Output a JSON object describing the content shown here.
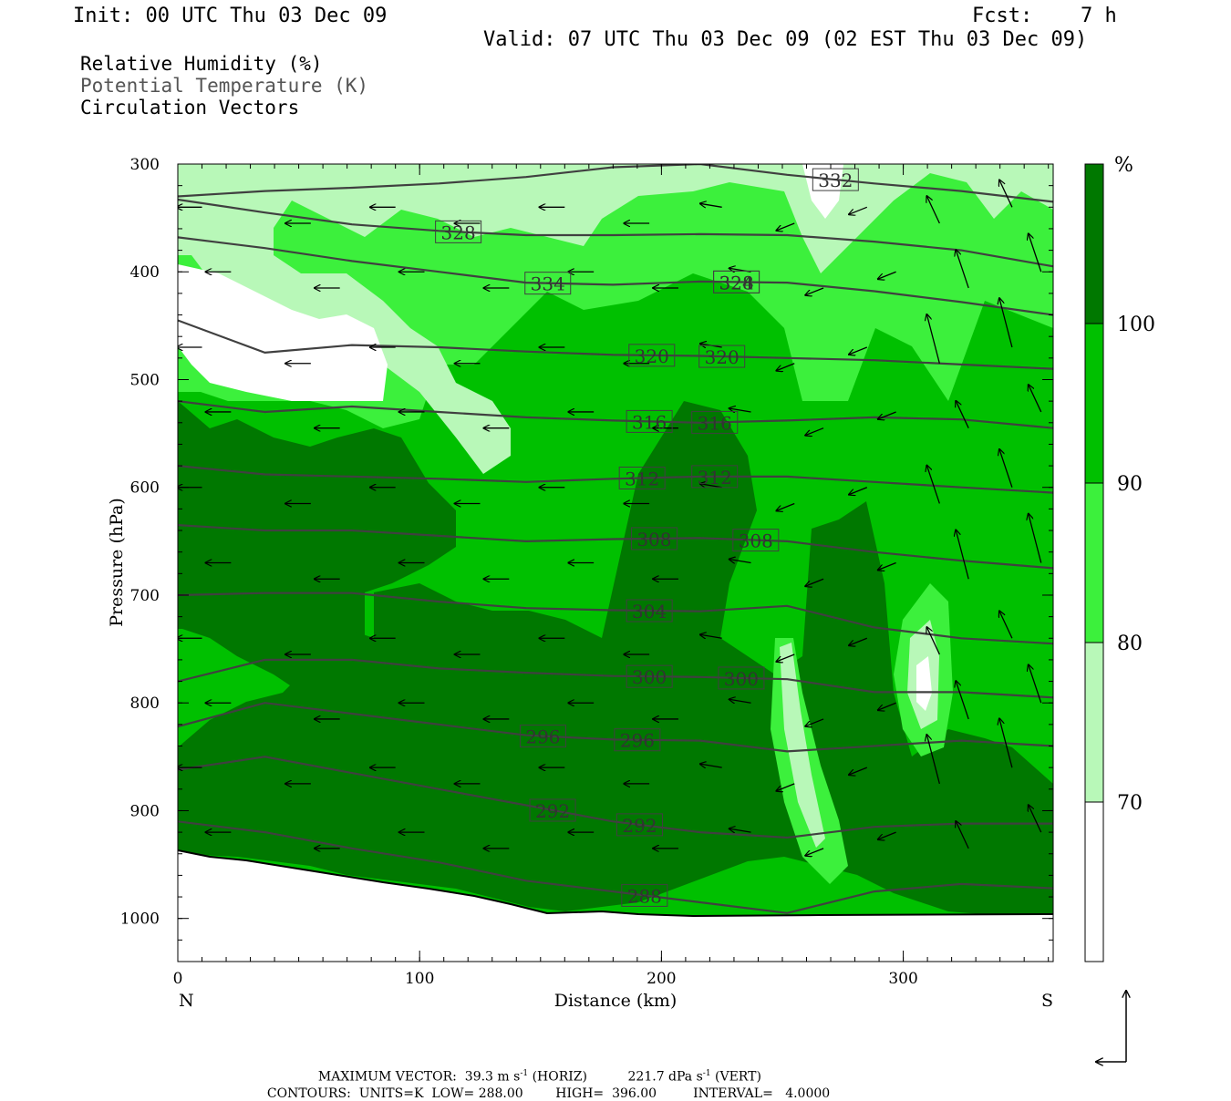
{
  "header": {
    "init": "Init: 00 UTC Thu 03 Dec 09",
    "fcst_label": "Fcst:",
    "fcst_value": "7 h",
    "valid": "Valid: 07 UTC Thu 03 Dec 09 (02 EST Thu 03 Dec 09)"
  },
  "legend": {
    "line1": "Relative Humidity (%)",
    "line2": "Potential Temperature (K)",
    "line3": "Circulation Vectors"
  },
  "colors": {
    "white": "#ffffff",
    "rh70": "#b8f8b8",
    "rh80": "#3cf03c",
    "rh90": "#00c000",
    "rh100": "#007800",
    "contour": "#404040",
    "legend_gray": "#555555"
  },
  "chart_data": {
    "type": "heatmap",
    "xlabel": "Distance (km)",
    "ylabel": "Pressure (hPa)",
    "xlim": [
      0,
      362
    ],
    "ylim": [
      1040,
      300
    ],
    "x_ticks": [
      "0",
      "100",
      "200",
      "300"
    ],
    "x_tick_values": [
      0,
      100,
      200,
      300
    ],
    "y_ticks": [
      "300",
      "400",
      "500",
      "600",
      "700",
      "800",
      "900",
      "1000"
    ],
    "y_tick_values": [
      300,
      400,
      500,
      600,
      700,
      800,
      900,
      1000
    ],
    "left_end": "N",
    "right_end": "S",
    "colorbar": {
      "unit": "%",
      "levels": [
        "70",
        "80",
        "90",
        "100"
      ],
      "level_values": [
        70,
        80,
        90,
        100
      ]
    },
    "theta_contours": [
      {
        "label": "332",
        "p": [
          330,
          325,
          322,
          318,
          312,
          303,
          300,
          310,
          318,
          325,
          335
        ],
        "label_x": 272
      },
      {
        "label": "328",
        "p": [
          333,
          345,
          356,
          362,
          366,
          366,
          365,
          366,
          372,
          380,
          395
        ],
        "label_x": 116
      },
      {
        "label": "328",
        "p": [
          368,
          378,
          390,
          400,
          410,
          412,
          409,
          410,
          418,
          428,
          440
        ],
        "label_x": 231
      },
      {
        "label": "324",
        "p": [
          368,
          378,
          390,
          400,
          410,
          412,
          409,
          410,
          418,
          428,
          440
        ],
        "label_x": 231
      },
      {
        "label": "334",
        "p": [
          368,
          378,
          390,
          400,
          410,
          412,
          409,
          410,
          418,
          428,
          440
        ],
        "label_x": 153
      },
      {
        "label": "320",
        "p": [
          445,
          475,
          468,
          470,
          474,
          477,
          478,
          480,
          482,
          486,
          490
        ],
        "label_x": 196
      },
      {
        "label": "320",
        "p": [
          445,
          475,
          468,
          470,
          474,
          477,
          478,
          480,
          482,
          486,
          490
        ],
        "label_x": 225
      },
      {
        "label": "316",
        "p": [
          520,
          530,
          525,
          530,
          535,
          538,
          540,
          538,
          535,
          537,
          545
        ],
        "label_x": 195
      },
      {
        "label": "316",
        "p": [
          520,
          530,
          525,
          530,
          535,
          538,
          540,
          538,
          535,
          537,
          545
        ],
        "label_x": 222
      },
      {
        "label": "312",
        "p": [
          580,
          588,
          590,
          592,
          595,
          592,
          590,
          590,
          595,
          600,
          605
        ],
        "label_x": 192
      },
      {
        "label": "312",
        "p": [
          580,
          588,
          590,
          592,
          595,
          592,
          590,
          590,
          595,
          600,
          605
        ],
        "label_x": 222
      },
      {
        "label": "308",
        "p": [
          635,
          640,
          640,
          645,
          650,
          648,
          647,
          650,
          660,
          668,
          675
        ],
        "label_x": 197
      },
      {
        "label": "308",
        "p": [
          635,
          640,
          640,
          645,
          650,
          648,
          647,
          650,
          660,
          668,
          675
        ],
        "label_x": 239
      },
      {
        "label": "304",
        "p": [
          700,
          698,
          698,
          706,
          712,
          714,
          715,
          710,
          730,
          740,
          745
        ],
        "label_x": 195
      },
      {
        "label": "300",
        "p": [
          780,
          760,
          760,
          768,
          772,
          775,
          776,
          778,
          790,
          790,
          795
        ],
        "label_x": 195
      },
      {
        "label": "300",
        "p": [
          780,
          760,
          760,
          768,
          772,
          775,
          776,
          778,
          790,
          790,
          795
        ],
        "label_x": 233
      },
      {
        "label": "296",
        "p": [
          822,
          800,
          810,
          820,
          830,
          834,
          835,
          845,
          840,
          835,
          840
        ],
        "label_x": 151
      },
      {
        "label": "296",
        "p": [
          822,
          800,
          810,
          820,
          830,
          834,
          835,
          845,
          840,
          835,
          840
        ],
        "label_x": 190
      },
      {
        "label": "292",
        "p": [
          862,
          850,
          865,
          880,
          895,
          910,
          920,
          925,
          915,
          912,
          912
        ],
        "label_x": 155
      },
      {
        "label": "292",
        "p": [
          862,
          850,
          865,
          880,
          895,
          910,
          920,
          925,
          915,
          912,
          912
        ],
        "label_x": 191
      },
      {
        "label": "288",
        "p": [
          910,
          920,
          935,
          948,
          965,
          975,
          985,
          995,
          975,
          968,
          972
        ],
        "label_x": 193
      }
    ],
    "theta_x": [
      0,
      36,
      72,
      108,
      144,
      180,
      216,
      252,
      288,
      324,
      362
    ],
    "surface_p": [
      935,
      940,
      948,
      958,
      968,
      985,
      1002,
      1000,
      1001,
      1001,
      1001
    ],
    "max_vector": {
      "prefix": "MAXIMUM VECTOR:",
      "horiz": "39.3 m s",
      "horiz_sup": "-1",
      "horiz_tag": "(HORIZ)",
      "vert": "221.7 dPa s",
      "vert_sup": "-1",
      "vert_tag": "(VERT)"
    },
    "contours_info": {
      "prefix": "CONTOURS:",
      "units": "UNITS=K",
      "low": "LOW=",
      "low_val": "288.00",
      "high": "HIGH=",
      "high_val": "396.00",
      "interval": "INTERVAL=",
      "interval_val": "4.0000"
    }
  }
}
